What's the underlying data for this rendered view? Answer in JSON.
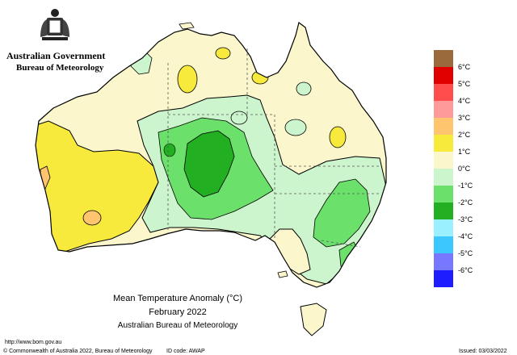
{
  "header": {
    "logo_line1": "Australian Government",
    "logo_line2": "Bureau of Meteorology"
  },
  "caption": {
    "line1": "Mean Temperature Anomaly (°C)",
    "line2": "February 2022",
    "line3": "Australian Bureau of Meteorology"
  },
  "footer": {
    "url": "http://www.bom.gov.au",
    "copyright": "© Commonwealth of Australia 2022, Bureau of Meteorology",
    "id_code": "ID code: AWAP",
    "issued": "Issued: 03/03/2022"
  },
  "legend": {
    "entries": [
      {
        "color": "#9b6a3c",
        "label": "6°C"
      },
      {
        "color": "#e00000",
        "label": "5°C"
      },
      {
        "color": "#ff4d4d",
        "label": "4°C"
      },
      {
        "color": "#ff9a9a",
        "label": "3°C"
      },
      {
        "color": "#ffc46e",
        "label": "2°C"
      },
      {
        "color": "#f7ea3c",
        "label": "1°C"
      },
      {
        "color": "#fbf6cc",
        "label": "0°C"
      },
      {
        "color": "#cdf5cd",
        "label": "-1°C"
      },
      {
        "color": "#6be06b",
        "label": "-2°C"
      },
      {
        "color": "#22b022",
        "label": "-3°C"
      },
      {
        "color": "#9af0ff",
        "label": "-4°C"
      },
      {
        "color": "#3cc8ff",
        "label": "-5°C"
      },
      {
        "color": "#7777ff",
        "label": "-6°C"
      },
      {
        "color": "#1d1dff",
        "label": ""
      }
    ]
  },
  "palette": {
    "land_base": "#fbf6cc",
    "warm_1": "#f7ea3c",
    "warm_2": "#ffc46e",
    "cool_1": "#cdf5cd",
    "cool_2": "#6be06b",
    "cool_3": "#22b022"
  }
}
